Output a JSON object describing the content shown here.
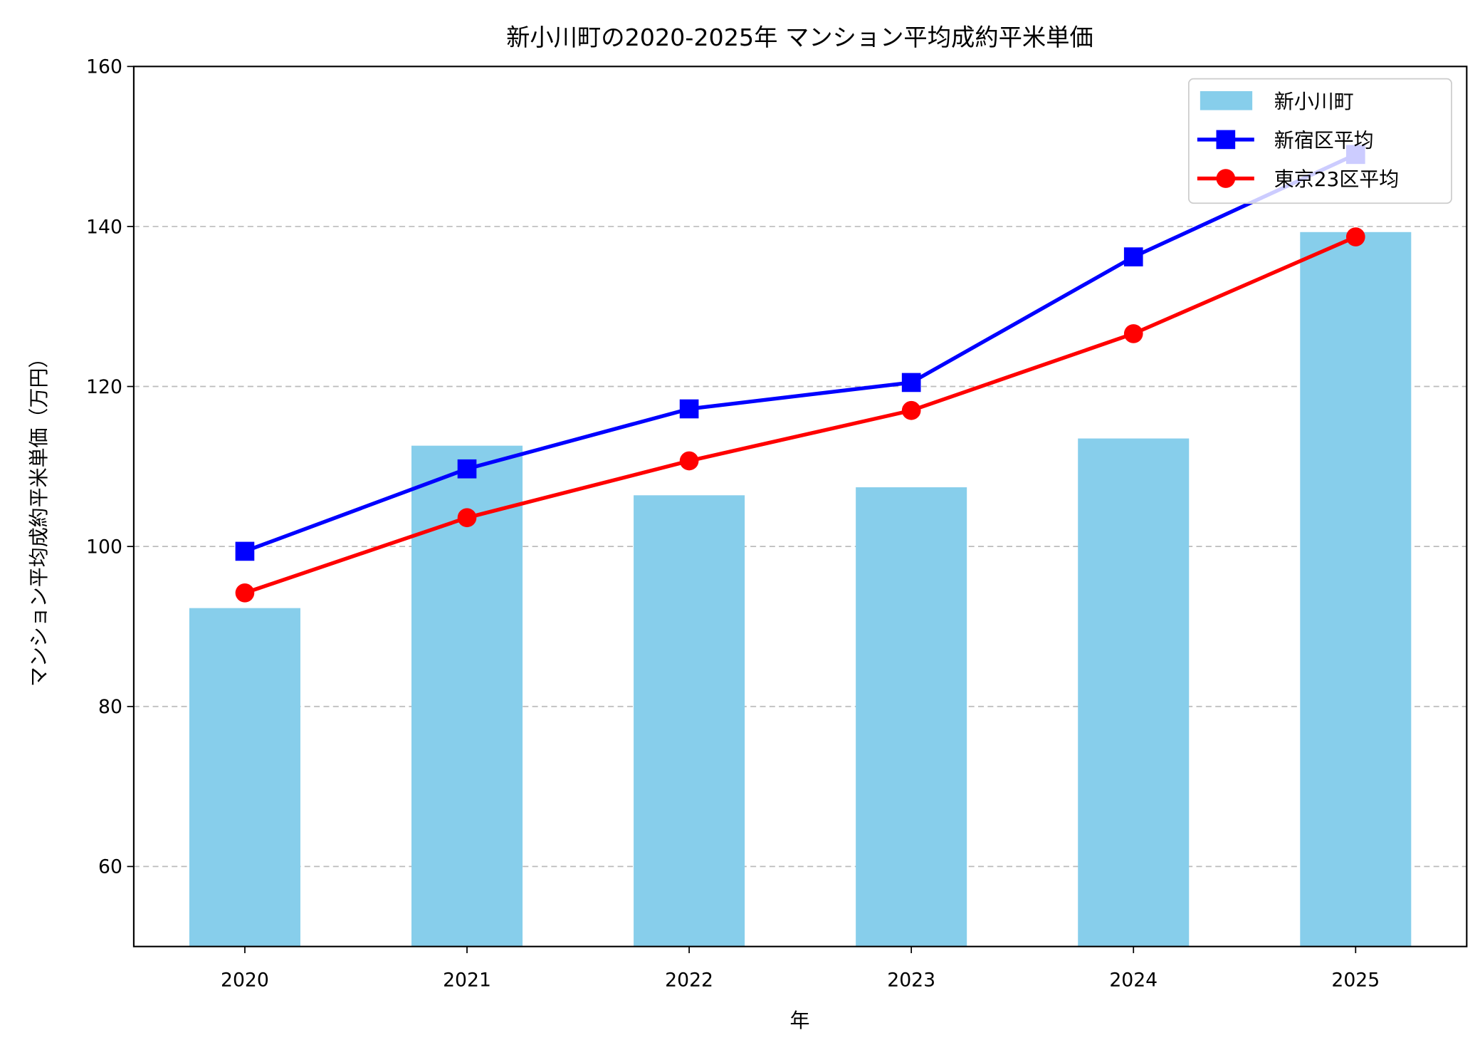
{
  "chart_data": {
    "type": "bar+line",
    "title": "新小川町の2020-2025年 マンション平均成約平米単価",
    "xlabel": "年",
    "ylabel": "マンション平均成約平米単価（万円）",
    "categories": [
      "2020",
      "2021",
      "2022",
      "2023",
      "2024",
      "2025"
    ],
    "ylim": [
      50,
      160
    ],
    "yticks": [
      60,
      80,
      100,
      120,
      140,
      160
    ],
    "grid": "y-dashed",
    "legend_placement": "top-right",
    "series": [
      {
        "name": "新小川町",
        "kind": "bar",
        "color": "#87CEEB",
        "values": [
          92.3,
          112.6,
          106.4,
          107.4,
          113.5,
          139.3
        ]
      },
      {
        "name": "新宿区平均",
        "kind": "line",
        "marker": "square",
        "color": "#0000FF",
        "values": [
          99.4,
          109.7,
          117.2,
          120.5,
          136.2,
          149.0
        ]
      },
      {
        "name": "東京23区平均",
        "kind": "line",
        "marker": "circle",
        "color": "#FF0000",
        "values": [
          94.2,
          103.6,
          110.7,
          117.0,
          126.6,
          138.7
        ]
      }
    ]
  }
}
